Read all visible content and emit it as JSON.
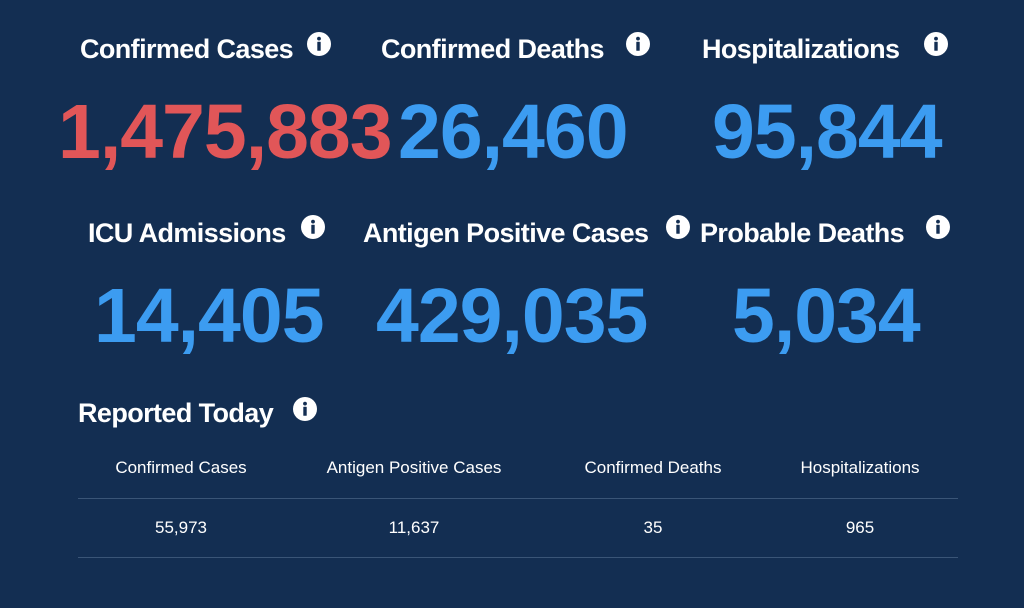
{
  "colors": {
    "background": "#132e52",
    "red_value": "#e15658",
    "blue_value": "#3c9cf1",
    "text": "#ffffff",
    "rule": "#3a5577"
  },
  "info_icon": "info-circle-icon",
  "stats": {
    "confirmed_cases": {
      "label": "Confirmed Cases",
      "value": "1,475,883"
    },
    "confirmed_deaths": {
      "label": "Confirmed Deaths",
      "value": "26,460"
    },
    "hospitalizations": {
      "label": "Hospitalizations",
      "value": "95,844"
    },
    "icu_admissions": {
      "label": "ICU Admissions",
      "value": "14,405"
    },
    "antigen_positive": {
      "label": "Antigen Positive Cases",
      "value": "429,035"
    },
    "probable_deaths": {
      "label": "Probable Deaths",
      "value": "5,034"
    }
  },
  "reported_today": {
    "title": "Reported Today",
    "columns": [
      "Confirmed Cases",
      "Antigen Positive Cases",
      "Confirmed Deaths",
      "Hospitalizations"
    ],
    "values": [
      "55,973",
      "11,637",
      "35",
      "965"
    ]
  }
}
